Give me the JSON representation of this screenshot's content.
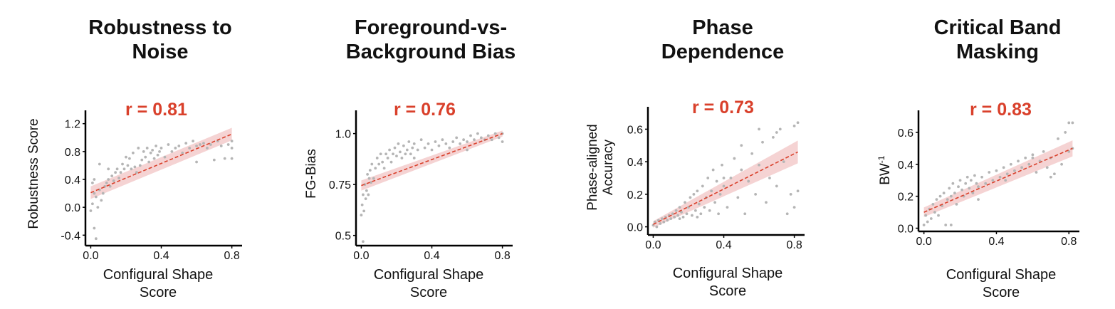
{
  "chart_data": [
    {
      "type": "scatter",
      "title": [
        "Robustness to",
        "Noise"
      ],
      "annotation": "r = 0.81",
      "xlabel": [
        "Configural Shape",
        "Score"
      ],
      "ylabel": [
        "Robustness Score"
      ],
      "xlim": [
        -0.03,
        0.85
      ],
      "ylim": [
        -0.55,
        1.35
      ],
      "xticks": [
        0.0,
        0.4,
        0.8
      ],
      "xtick_labels": [
        "0.0",
        "0.4",
        "0.8"
      ],
      "yticks": [
        -0.4,
        0.0,
        0.4,
        0.8,
        1.2
      ],
      "ytick_labels": [
        "-0.4",
        "0.0",
        "0.4",
        "0.8",
        "1.2"
      ],
      "fit": {
        "x0": 0.0,
        "y0": 0.21,
        "x1": 0.8,
        "y1": 1.05,
        "band0": 0.09,
        "band1": 0.09
      },
      "points": [
        [
          0.0,
          -0.05
        ],
        [
          0.01,
          0.05
        ],
        [
          0.02,
          -0.3
        ],
        [
          0.03,
          -0.45
        ],
        [
          0.01,
          0.35
        ],
        [
          0.02,
          0.2
        ],
        [
          0.03,
          0.15
        ],
        [
          0.04,
          0.0
        ],
        [
          0.05,
          0.25
        ],
        [
          0.06,
          0.1
        ],
        [
          0.07,
          0.2
        ],
        [
          0.08,
          0.3
        ],
        [
          0.09,
          0.35
        ],
        [
          0.1,
          0.4
        ],
        [
          0.11,
          0.3
        ],
        [
          0.12,
          0.45
        ],
        [
          0.13,
          0.38
        ],
        [
          0.14,
          0.5
        ],
        [
          0.15,
          0.55
        ],
        [
          0.16,
          0.42
        ],
        [
          0.17,
          0.5
        ],
        [
          0.18,
          0.62
        ],
        [
          0.19,
          0.55
        ],
        [
          0.2,
          0.72
        ],
        [
          0.21,
          0.6
        ],
        [
          0.22,
          0.7
        ],
        [
          0.23,
          0.55
        ],
        [
          0.24,
          0.78
        ],
        [
          0.25,
          0.58
        ],
        [
          0.26,
          0.5
        ],
        [
          0.27,
          0.85
        ],
        [
          0.28,
          0.6
        ],
        [
          0.29,
          0.68
        ],
        [
          0.3,
          0.8
        ],
        [
          0.31,
          0.72
        ],
        [
          0.32,
          0.85
        ],
        [
          0.33,
          0.65
        ],
        [
          0.34,
          0.78
        ],
        [
          0.35,
          0.82
        ],
        [
          0.36,
          0.7
        ],
        [
          0.37,
          0.88
        ],
        [
          0.38,
          0.75
        ],
        [
          0.39,
          0.8
        ],
        [
          0.4,
          0.85
        ],
        [
          0.42,
          0.72
        ],
        [
          0.44,
          0.9
        ],
        [
          0.46,
          0.8
        ],
        [
          0.48,
          0.85
        ],
        [
          0.5,
          0.88
        ],
        [
          0.52,
          0.78
        ],
        [
          0.54,
          0.92
        ],
        [
          0.56,
          0.85
        ],
        [
          0.58,
          0.95
        ],
        [
          0.6,
          0.88
        ],
        [
          0.62,
          0.9
        ],
        [
          0.64,
          0.92
        ],
        [
          0.66,
          0.85
        ],
        [
          0.68,
          0.9
        ],
        [
          0.7,
          0.68
        ],
        [
          0.72,
          0.95
        ],
        [
          0.74,
          0.88
        ],
        [
          0.76,
          0.7
        ],
        [
          0.78,
          0.9
        ],
        [
          0.8,
          0.85
        ],
        [
          0.8,
          0.95
        ],
        [
          0.8,
          0.7
        ],
        [
          0.05,
          0.62
        ],
        [
          0.1,
          0.55
        ],
        [
          0.02,
          0.4
        ],
        [
          0.6,
          0.65
        ]
      ],
      "colors": {
        "points": "#b5b5b5",
        "fit": "#d9402b",
        "band": "#f2c4c4"
      }
    },
    {
      "type": "scatter",
      "title": [
        "Foreground-vs-",
        "Background Bias"
      ],
      "annotation": "r = 0.76",
      "xlabel": [
        "Configural Shape",
        "Score"
      ],
      "ylabel": [
        "FG-Bias"
      ],
      "xlim": [
        -0.03,
        0.85
      ],
      "ylim": [
        0.45,
        1.1
      ],
      "xticks": [
        0.0,
        0.4,
        0.8
      ],
      "xtick_labels": [
        "0.0",
        "0.4",
        "0.8"
      ],
      "yticks": [
        0.5,
        0.75,
        1.0
      ],
      "ytick_labels": [
        "0.5",
        "0.75",
        "1.0"
      ],
      "fit": {
        "x0": 0.0,
        "y0": 0.745,
        "x1": 0.8,
        "y1": 1.0,
        "band0": 0.025,
        "band1": 0.015
      },
      "points": [
        [
          0.0,
          0.6
        ],
        [
          0.005,
          0.65
        ],
        [
          0.01,
          0.7
        ],
        [
          0.015,
          0.62
        ],
        [
          0.02,
          0.75
        ],
        [
          0.025,
          0.68
        ],
        [
          0.03,
          0.72
        ],
        [
          0.035,
          0.8
        ],
        [
          0.04,
          0.7
        ],
        [
          0.045,
          0.78
        ],
        [
          0.05,
          0.82
        ],
        [
          0.055,
          0.76
        ],
        [
          0.06,
          0.85
        ],
        [
          0.07,
          0.78
        ],
        [
          0.08,
          0.83
        ],
        [
          0.09,
          0.88
        ],
        [
          0.1,
          0.85
        ],
        [
          0.11,
          0.9
        ],
        [
          0.12,
          0.86
        ],
        [
          0.13,
          0.83
        ],
        [
          0.14,
          0.9
        ],
        [
          0.15,
          0.88
        ],
        [
          0.16,
          0.92
        ],
        [
          0.17,
          0.86
        ],
        [
          0.18,
          0.9
        ],
        [
          0.19,
          0.93
        ],
        [
          0.2,
          0.89
        ],
        [
          0.21,
          0.95
        ],
        [
          0.22,
          0.91
        ],
        [
          0.23,
          0.88
        ],
        [
          0.24,
          0.94
        ],
        [
          0.25,
          0.9
        ],
        [
          0.26,
          0.92
        ],
        [
          0.27,
          0.96
        ],
        [
          0.28,
          0.9
        ],
        [
          0.29,
          0.93
        ],
        [
          0.3,
          0.95
        ],
        [
          0.32,
          0.92
        ],
        [
          0.34,
          0.97
        ],
        [
          0.36,
          0.93
        ],
        [
          0.38,
          0.95
        ],
        [
          0.4,
          0.92
        ],
        [
          0.42,
          0.96
        ],
        [
          0.44,
          0.94
        ],
        [
          0.46,
          0.97
        ],
        [
          0.48,
          0.95
        ],
        [
          0.5,
          0.93
        ],
        [
          0.52,
          0.96
        ],
        [
          0.54,
          0.98
        ],
        [
          0.56,
          0.95
        ],
        [
          0.58,
          0.97
        ],
        [
          0.6,
          0.96
        ],
        [
          0.62,
          0.99
        ],
        [
          0.64,
          0.97
        ],
        [
          0.66,
          1.0
        ],
        [
          0.68,
          0.98
        ],
        [
          0.7,
          0.97
        ],
        [
          0.72,
          0.99
        ],
        [
          0.74,
          0.97
        ],
        [
          0.76,
          1.0
        ],
        [
          0.78,
          0.98
        ],
        [
          0.8,
          0.96
        ],
        [
          0.8,
          1.0
        ],
        [
          0.01,
          0.47
        ],
        [
          0.3,
          0.88
        ],
        [
          0.6,
          0.92
        ]
      ],
      "colors": {
        "points": "#b5b5b5",
        "fit": "#d9402b",
        "band": "#f2c4c4"
      }
    },
    {
      "type": "scatter",
      "title": [
        "Phase",
        "Dependence"
      ],
      "annotation": "r = 0.73",
      "xlabel": [
        "Configural Shape",
        "Score"
      ],
      "ylabel": [
        "Phase-aligned",
        "Accuracy"
      ],
      "xlim": [
        -0.03,
        0.85
      ],
      "ylim": [
        -0.05,
        0.72
      ],
      "xticks": [
        0.0,
        0.4,
        0.8
      ],
      "xtick_labels": [
        "0.0",
        "0.4",
        "0.8"
      ],
      "yticks": [
        0.0,
        0.2,
        0.4,
        0.6
      ],
      "ytick_labels": [
        "0.0",
        "0.2",
        "0.4",
        "0.6"
      ],
      "fit": {
        "x0": 0.0,
        "y0": 0.015,
        "x1": 0.82,
        "y1": 0.46,
        "band0": 0.02,
        "band1": 0.07
      },
      "points": [
        [
          0.0,
          0.01
        ],
        [
          0.01,
          0.03
        ],
        [
          0.02,
          0.0
        ],
        [
          0.03,
          0.04
        ],
        [
          0.04,
          0.02
        ],
        [
          0.05,
          0.05
        ],
        [
          0.06,
          0.03
        ],
        [
          0.07,
          0.06
        ],
        [
          0.08,
          0.04
        ],
        [
          0.09,
          0.07
        ],
        [
          0.1,
          0.05
        ],
        [
          0.11,
          0.08
        ],
        [
          0.12,
          0.06
        ],
        [
          0.13,
          0.1
        ],
        [
          0.14,
          0.07
        ],
        [
          0.15,
          0.12
        ],
        [
          0.16,
          0.09
        ],
        [
          0.17,
          0.06
        ],
        [
          0.18,
          0.15
        ],
        [
          0.19,
          0.08
        ],
        [
          0.2,
          0.12
        ],
        [
          0.21,
          0.18
        ],
        [
          0.22,
          0.07
        ],
        [
          0.23,
          0.2
        ],
        [
          0.24,
          0.1
        ],
        [
          0.25,
          0.22
        ],
        [
          0.26,
          0.14
        ],
        [
          0.27,
          0.08
        ],
        [
          0.28,
          0.25
        ],
        [
          0.29,
          0.12
        ],
        [
          0.3,
          0.18
        ],
        [
          0.31,
          0.3
        ],
        [
          0.32,
          0.1
        ],
        [
          0.33,
          0.22
        ],
        [
          0.34,
          0.35
        ],
        [
          0.35,
          0.15
        ],
        [
          0.36,
          0.28
        ],
        [
          0.37,
          0.08
        ],
        [
          0.38,
          0.2
        ],
        [
          0.39,
          0.38
        ],
        [
          0.4,
          0.25
        ],
        [
          0.42,
          0.12
        ],
        [
          0.44,
          0.3
        ],
        [
          0.46,
          0.42
        ],
        [
          0.48,
          0.18
        ],
        [
          0.5,
          0.35
        ],
        [
          0.52,
          0.08
        ],
        [
          0.54,
          0.28
        ],
        [
          0.56,
          0.45
        ],
        [
          0.58,
          0.2
        ],
        [
          0.6,
          0.38
        ],
        [
          0.62,
          0.52
        ],
        [
          0.64,
          0.15
        ],
        [
          0.66,
          0.3
        ],
        [
          0.68,
          0.55
        ],
        [
          0.7,
          0.25
        ],
        [
          0.72,
          0.6
        ],
        [
          0.74,
          0.4
        ],
        [
          0.76,
          0.08
        ],
        [
          0.78,
          0.2
        ],
        [
          0.8,
          0.62
        ],
        [
          0.82,
          0.22
        ],
        [
          0.82,
          0.64
        ],
        [
          0.8,
          0.12
        ],
        [
          0.6,
          0.6
        ],
        [
          0.7,
          0.58
        ],
        [
          0.5,
          0.5
        ],
        [
          0.4,
          0.3
        ],
        [
          0.25,
          0.06
        ],
        [
          0.15,
          0.05
        ]
      ],
      "colors": {
        "points": "#b5b5b5",
        "fit": "#d9402b",
        "band": "#f2c4c4"
      }
    },
    {
      "type": "scatter",
      "title": [
        "Critical Band",
        "Masking"
      ],
      "annotation": "r = 0.83",
      "xlabel": [
        "Configural Shape",
        "Score"
      ],
      "ylabel": [
        "BW",
        "-1"
      ],
      "xlim": [
        -0.03,
        0.85
      ],
      "ylim": [
        -0.02,
        0.72
      ],
      "xticks": [
        0.0,
        0.4,
        0.8
      ],
      "xtick_labels": [
        "0.0",
        "0.4",
        "0.8"
      ],
      "yticks": [
        0.0,
        0.2,
        0.4,
        0.6
      ],
      "ytick_labels": [
        "0.0",
        "0.2",
        "0.4",
        "0.6"
      ],
      "fit": {
        "x0": 0.0,
        "y0": 0.1,
        "x1": 0.82,
        "y1": 0.5,
        "band0": 0.03,
        "band1": 0.05
      },
      "points": [
        [
          0.0,
          0.02
        ],
        [
          0.01,
          0.08
        ],
        [
          0.02,
          0.04
        ],
        [
          0.03,
          0.12
        ],
        [
          0.04,
          0.06
        ],
        [
          0.05,
          0.15
        ],
        [
          0.06,
          0.1
        ],
        [
          0.07,
          0.18
        ],
        [
          0.08,
          0.08
        ],
        [
          0.09,
          0.2
        ],
        [
          0.1,
          0.14
        ],
        [
          0.11,
          0.22
        ],
        [
          0.12,
          0.02
        ],
        [
          0.13,
          0.18
        ],
        [
          0.14,
          0.25
        ],
        [
          0.15,
          0.2
        ],
        [
          0.16,
          0.28
        ],
        [
          0.17,
          0.22
        ],
        [
          0.18,
          0.15
        ],
        [
          0.19,
          0.26
        ],
        [
          0.2,
          0.3
        ],
        [
          0.21,
          0.24
        ],
        [
          0.22,
          0.2
        ],
        [
          0.23,
          0.28
        ],
        [
          0.24,
          0.32
        ],
        [
          0.25,
          0.25
        ],
        [
          0.26,
          0.3
        ],
        [
          0.27,
          0.22
        ],
        [
          0.28,
          0.33
        ],
        [
          0.29,
          0.28
        ],
        [
          0.3,
          0.26
        ],
        [
          0.32,
          0.32
        ],
        [
          0.34,
          0.28
        ],
        [
          0.36,
          0.35
        ],
        [
          0.38,
          0.3
        ],
        [
          0.4,
          0.36
        ],
        [
          0.42,
          0.32
        ],
        [
          0.44,
          0.38
        ],
        [
          0.46,
          0.34
        ],
        [
          0.48,
          0.4
        ],
        [
          0.5,
          0.36
        ],
        [
          0.52,
          0.42
        ],
        [
          0.54,
          0.38
        ],
        [
          0.56,
          0.44
        ],
        [
          0.58,
          0.4
        ],
        [
          0.6,
          0.46
        ],
        [
          0.62,
          0.35
        ],
        [
          0.64,
          0.42
        ],
        [
          0.66,
          0.48
        ],
        [
          0.68,
          0.38
        ],
        [
          0.7,
          0.44
        ],
        [
          0.72,
          0.34
        ],
        [
          0.74,
          0.56
        ],
        [
          0.76,
          0.4
        ],
        [
          0.78,
          0.6
        ],
        [
          0.8,
          0.48
        ],
        [
          0.8,
          0.66
        ],
        [
          0.82,
          0.5
        ],
        [
          0.82,
          0.66
        ],
        [
          0.7,
          0.32
        ],
        [
          0.6,
          0.44
        ],
        [
          0.15,
          0.02
        ],
        [
          0.3,
          0.18
        ],
        [
          0.45,
          0.3
        ]
      ],
      "colors": {
        "points": "#b5b5b5",
        "fit": "#d9402b",
        "band": "#f2c4c4"
      }
    }
  ]
}
